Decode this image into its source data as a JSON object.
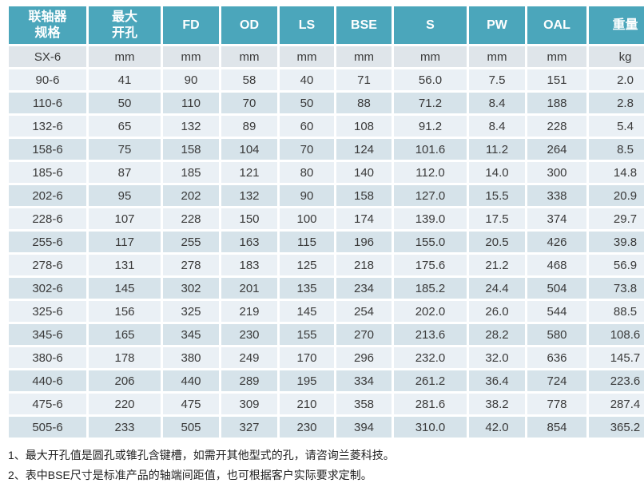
{
  "colors": {
    "header_bg": "#4ba6bb",
    "header_text": "#ffffff",
    "row_light": "#eaf0f5",
    "row_dark": "#d6e3ea",
    "units_row_bg": "#dfe5ea",
    "cell_text": "#3a3a3a"
  },
  "table": {
    "headers": [
      "联轴器\n规格",
      "最大\n开孔",
      "FD",
      "OD",
      "LS",
      "BSE",
      "S",
      "PW",
      "OAL",
      "重量"
    ],
    "units_row": [
      "SX-6",
      "mm",
      "mm",
      "mm",
      "mm",
      "mm",
      "mm",
      "mm",
      "mm",
      "kg"
    ],
    "rows": [
      [
        "90-6",
        "41",
        "90",
        "58",
        "40",
        "71",
        "56.0",
        "7.5",
        "151",
        "2.0"
      ],
      [
        "110-6",
        "50",
        "110",
        "70",
        "50",
        "88",
        "71.2",
        "8.4",
        "188",
        "2.8"
      ],
      [
        "132-6",
        "65",
        "132",
        "89",
        "60",
        "108",
        "91.2",
        "8.4",
        "228",
        "5.4"
      ],
      [
        "158-6",
        "75",
        "158",
        "104",
        "70",
        "124",
        "101.6",
        "11.2",
        "264",
        "8.5"
      ],
      [
        "185-6",
        "87",
        "185",
        "121",
        "80",
        "140",
        "112.0",
        "14.0",
        "300",
        "14.8"
      ],
      [
        "202-6",
        "95",
        "202",
        "132",
        "90",
        "158",
        "127.0",
        "15.5",
        "338",
        "20.9"
      ],
      [
        "228-6",
        "107",
        "228",
        "150",
        "100",
        "174",
        "139.0",
        "17.5",
        "374",
        "29.7"
      ],
      [
        "255-6",
        "117",
        "255",
        "163",
        "115",
        "196",
        "155.0",
        "20.5",
        "426",
        "39.8"
      ],
      [
        "278-6",
        "131",
        "278",
        "183",
        "125",
        "218",
        "175.6",
        "21.2",
        "468",
        "56.9"
      ],
      [
        "302-6",
        "145",
        "302",
        "201",
        "135",
        "234",
        "185.2",
        "24.4",
        "504",
        "73.8"
      ],
      [
        "325-6",
        "156",
        "325",
        "219",
        "145",
        "254",
        "202.0",
        "26.0",
        "544",
        "88.5"
      ],
      [
        "345-6",
        "165",
        "345",
        "230",
        "155",
        "270",
        "213.6",
        "28.2",
        "580",
        "108.6"
      ],
      [
        "380-6",
        "178",
        "380",
        "249",
        "170",
        "296",
        "232.0",
        "32.0",
        "636",
        "145.7"
      ],
      [
        "440-6",
        "206",
        "440",
        "289",
        "195",
        "334",
        "261.2",
        "36.4",
        "724",
        "223.6"
      ],
      [
        "475-6",
        "220",
        "475",
        "309",
        "210",
        "358",
        "281.6",
        "38.2",
        "778",
        "287.4"
      ],
      [
        "505-6",
        "233",
        "505",
        "327",
        "230",
        "394",
        "310.0",
        "42.0",
        "854",
        "365.2"
      ]
    ]
  },
  "notes": [
    "1、最大开孔值是圆孔或锥孔含键槽，如需开其他型式的孔，请咨询兰菱科技。",
    "2、表中BSE尺寸是标准产品的轴端间距值，也可根据客户实际要求定制。"
  ]
}
